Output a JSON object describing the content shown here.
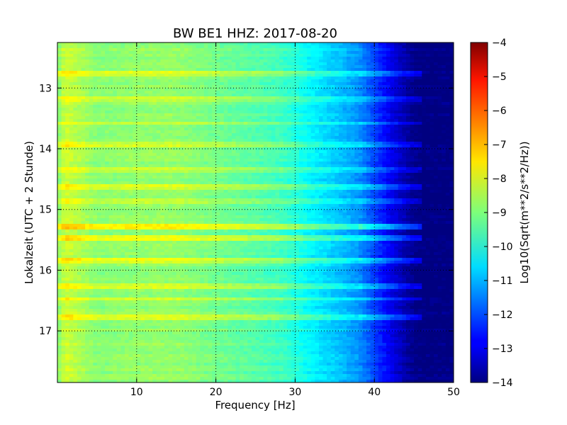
{
  "chart_data": {
    "type": "heatmap",
    "title": "BW BE1 HHZ: 2017-08-20",
    "xlabel": "Frequency [Hz]",
    "ylabel": "Lokalzeit (UTC + 2 Stunde)",
    "xlim": [
      0,
      50
    ],
    "ylim": [
      12.25,
      17.85
    ],
    "y_inverted": true,
    "xticks": [
      10,
      20,
      30,
      40,
      50
    ],
    "xtick_labels": [
      "10",
      "20",
      "30",
      "40",
      "50"
    ],
    "yticks": [
      13,
      14,
      15,
      16,
      17
    ],
    "ytick_labels": [
      "13",
      "14",
      "15",
      "16",
      "17"
    ],
    "grid": true,
    "colorbar": {
      "label": "Log10(Sqrt(m**2/s**2/Hz))",
      "min": -14,
      "max": -4,
      "ticks": [
        -4,
        -5,
        -6,
        -7,
        -8,
        -9,
        -10,
        -11,
        -12,
        -13,
        -14
      ],
      "tick_labels": [
        "−4",
        "−5",
        "−6",
        "−7",
        "−8",
        "−9",
        "−10",
        "−11",
        "−12",
        "−13",
        "−14"
      ],
      "colormap": "jet"
    },
    "spectrum_profile": {
      "frequency_hz": [
        0,
        1,
        2,
        5,
        10,
        15,
        20,
        25,
        28,
        30,
        32,
        34,
        36,
        38,
        40,
        42,
        44,
        45,
        46,
        50
      ],
      "level": [
        -9.0,
        -8.2,
        -8.4,
        -8.9,
        -8.8,
        -8.8,
        -9.1,
        -9.4,
        -9.6,
        -9.9,
        -10.3,
        -10.6,
        -10.9,
        -11.3,
        -12.1,
        -12.9,
        -13.6,
        -13.9,
        -14.0,
        -14.0
      ]
    },
    "bright_bands": [
      {
        "time": 12.75,
        "offset": 0.7
      },
      {
        "time": 13.19,
        "offset": 0.5
      },
      {
        "time": 13.58,
        "offset": 0.6
      },
      {
        "time": 13.92,
        "offset": 0.6
      },
      {
        "time": 14.36,
        "offset": 0.5
      },
      {
        "time": 14.62,
        "offset": 0.7
      },
      {
        "time": 14.87,
        "offset": 0.6
      },
      {
        "time": 15.28,
        "offset": 1.3
      },
      {
        "time": 15.46,
        "offset": 0.9
      },
      {
        "time": 15.83,
        "offset": 0.8
      },
      {
        "time": 16.26,
        "offset": 0.7
      },
      {
        "time": 16.47,
        "offset": 0.6
      },
      {
        "time": 16.78,
        "offset": 0.8
      }
    ]
  }
}
